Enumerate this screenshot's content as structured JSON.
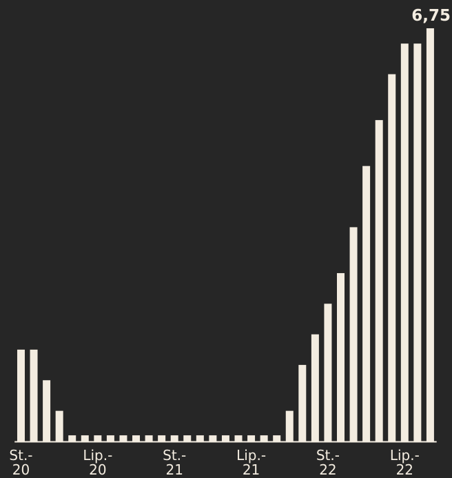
{
  "chart_data": {
    "type": "bar",
    "categories": [
      "St.-\n20",
      null,
      null,
      null,
      null,
      null,
      "Lip.-\n20",
      null,
      null,
      null,
      null,
      null,
      "St.-\n21",
      null,
      null,
      null,
      null,
      null,
      "Lip.-\n21",
      null,
      null,
      null,
      null,
      null,
      "St.-\n22",
      null,
      null,
      null,
      null,
      null,
      "Lip.-\n22",
      null,
      null
    ],
    "values": [
      1.5,
      1.5,
      1.0,
      0.5,
      0.1,
      0.1,
      0.1,
      0.1,
      0.1,
      0.1,
      0.1,
      0.1,
      0.1,
      0.1,
      0.1,
      0.1,
      0.1,
      0.1,
      0.1,
      0.1,
      0.1,
      0.5,
      1.25,
      1.75,
      2.25,
      2.75,
      3.5,
      4.5,
      5.25,
      6.0,
      6.5,
      6.5,
      6.75
    ],
    "value_labels": [
      null,
      null,
      null,
      null,
      null,
      null,
      null,
      null,
      null,
      null,
      null,
      null,
      null,
      null,
      null,
      null,
      null,
      null,
      null,
      null,
      null,
      null,
      null,
      null,
      null,
      null,
      null,
      null,
      null,
      null,
      null,
      null,
      "6,75"
    ],
    "color": "#f3ece0",
    "ylim": [
      0,
      6.75
    ]
  }
}
